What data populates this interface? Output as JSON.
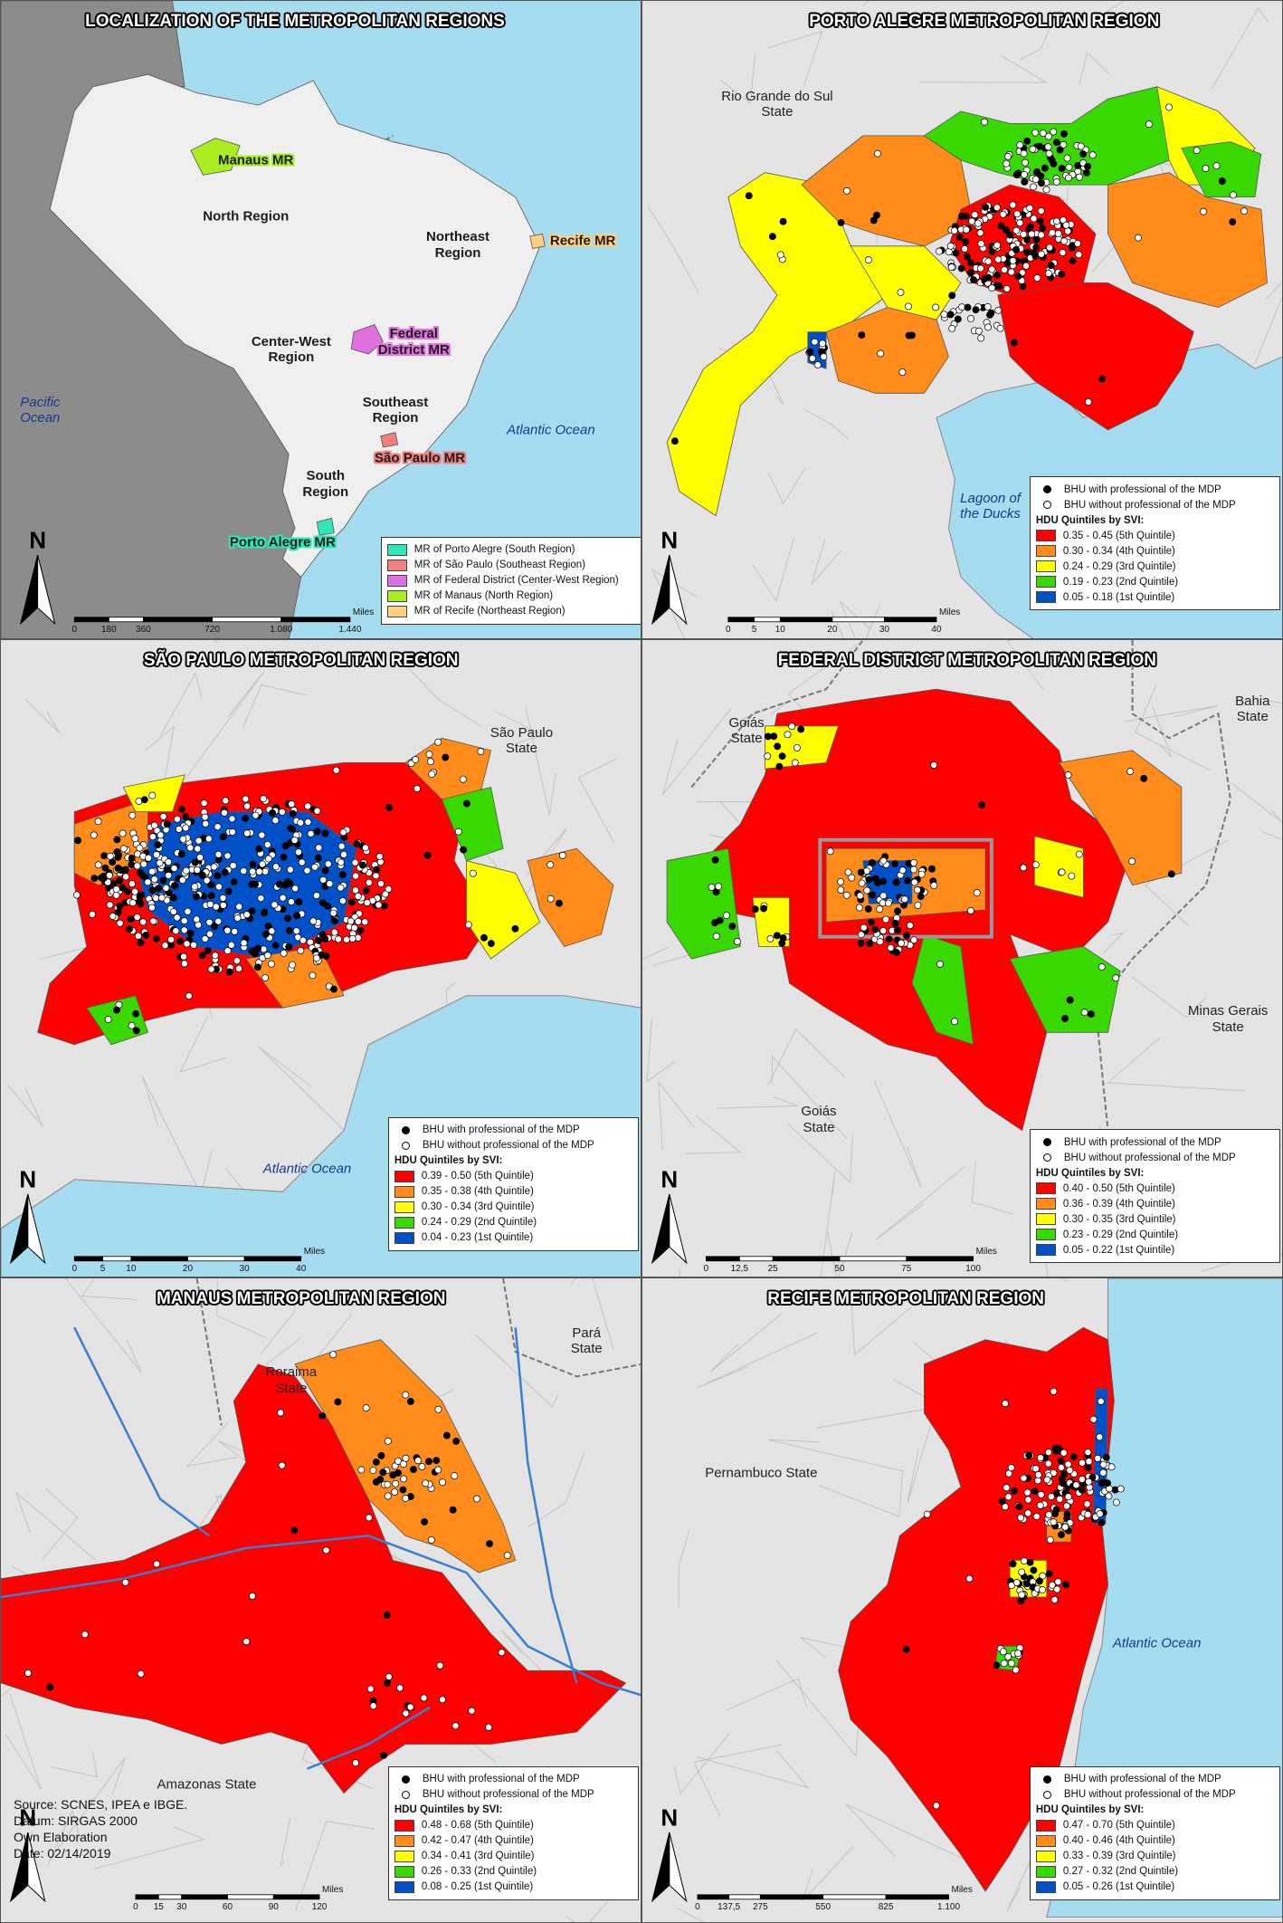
{
  "panels": [
    {
      "title": "LOCALIZATION OF THE METROPOLITAN REGIONS",
      "labels": [
        "Manaus MR",
        "North Region",
        "Northeast Region",
        "Recife MR",
        "Center-West Region",
        "Federal District MR",
        "Southeast Region",
        "São Paulo MR",
        "South Region",
        "Porto Alegre MR",
        "Pacific Ocean",
        "Atlantic Ocean"
      ],
      "legend": {
        "entries": [
          {
            "label": "MR of Porto Alegre (South Region)",
            "color": "#2ee8b8"
          },
          {
            "label": "MR of São Paulo (Southeast Region)",
            "color": "#f08080"
          },
          {
            "label": "MR of Federal District (Center-West Region)",
            "color": "#e070e0"
          },
          {
            "label": "MR of Manaus (North Region)",
            "color": "#aaee22"
          },
          {
            "label": "MR of Recife (Northeast Region)",
            "color": "#ffd080"
          }
        ]
      },
      "scale": {
        "ticks": [
          "0",
          "180",
          "360",
          "720",
          "1.080",
          "1.440"
        ],
        "unit": "Miles"
      },
      "north": "N"
    },
    {
      "title": "PORTO ALEGRE METROPOLITAN REGION",
      "labels": [
        "Rio Grande do Sul State",
        "Lagoon of the Ducks"
      ],
      "legend": {
        "symbols": [
          {
            "label": "BHU with professional of the MDP",
            "color": "#000000"
          },
          {
            "label": "BHU without professional of the MDP",
            "color": "#ffffff"
          }
        ],
        "heading": "HDU Quintiles by SVI:",
        "entries": [
          {
            "label": "0.35 - 0.45 (5th Quintile)",
            "color": "#ff0000"
          },
          {
            "label": "0.30 - 0.34 (4th Quintile)",
            "color": "#ff8c1a"
          },
          {
            "label": "0.24 - 0.29 (3rd Quintile)",
            "color": "#ffff00"
          },
          {
            "label": "0.19 - 0.23 (2nd Quintile)",
            "color": "#38d800"
          },
          {
            "label": "0.05 - 0.18 (1st Quintile)",
            "color": "#0050c8"
          }
        ]
      },
      "scale": {
        "ticks": [
          "0",
          "5",
          "10",
          "20",
          "30",
          "40"
        ],
        "unit": "Miles"
      },
      "north": "N"
    },
    {
      "title": "SÃO PAULO METROPOLITAN REGION",
      "labels": [
        "São Paulo State",
        "Atlantic Ocean"
      ],
      "legend": {
        "symbols": [
          {
            "label": "BHU with professional of the MDP",
            "color": "#000000"
          },
          {
            "label": "BHU without professional of the MDP",
            "color": "#ffffff"
          }
        ],
        "heading": "HDU Quintiles by SVI:",
        "entries": [
          {
            "label": "0.39 - 0.50 (5th Quintile)",
            "color": "#ff0000"
          },
          {
            "label": "0.35 - 0.38 (4th Quintile)",
            "color": "#ff8c1a"
          },
          {
            "label": "0.30 - 0.34 (3rd Quintile)",
            "color": "#ffff00"
          },
          {
            "label": "0.24 - 0.29 (2nd Quintile)",
            "color": "#38d800"
          },
          {
            "label": "0.04 - 0.23 (1st Quintile)",
            "color": "#0050c8"
          }
        ]
      },
      "scale": {
        "ticks": [
          "0",
          "5",
          "10",
          "20",
          "30",
          "40"
        ],
        "unit": "Miles"
      },
      "north": "N"
    },
    {
      "title": "FEDERAL DISTRICT METROPOLITAN REGION",
      "labels": [
        "Goiás State",
        "Bahia State",
        "Minas Gerais State",
        "Goiás State"
      ],
      "legend": {
        "symbols": [
          {
            "label": "BHU with professional of the MDP",
            "color": "#000000"
          },
          {
            "label": "BHU without professional of the MDP",
            "color": "#ffffff"
          }
        ],
        "heading": "HDU Quintiles by SVI:",
        "entries": [
          {
            "label": "0.40 - 0.50 (5th Quintile)",
            "color": "#ff0000"
          },
          {
            "label": "0.36 - 0.39 (4th Quintile)",
            "color": "#ff8c1a"
          },
          {
            "label": "0.30 - 0.35 (3rd Quintile)",
            "color": "#ffff00"
          },
          {
            "label": "0.23 - 0.29 (2nd Quintile)",
            "color": "#38d800"
          },
          {
            "label": "0.05 - 0.22 (1st Quintile)",
            "color": "#0050c8"
          }
        ]
      },
      "scale": {
        "ticks": [
          "0",
          "12,5",
          "25",
          "50",
          "75",
          "100"
        ],
        "unit": "Miles"
      },
      "north": "N"
    },
    {
      "title": "MANAUS METROPOLITAN REGION",
      "labels": [
        "Roraima State",
        "Pará State",
        "Amazonas State"
      ],
      "legend": {
        "symbols": [
          {
            "label": "BHU with professional of the MDP",
            "color": "#000000"
          },
          {
            "label": "BHU without professional of the MDP",
            "color": "#ffffff"
          }
        ],
        "heading": "HDU Quintiles by SVI:",
        "entries": [
          {
            "label": "0.48 - 0.68 (5th Quintile)",
            "color": "#ff0000"
          },
          {
            "label": "0.42 - 0.47 (4th Quintile)",
            "color": "#ff8c1a"
          },
          {
            "label": "0.34 - 0.41 (3rd Quintile)",
            "color": "#ffff00"
          },
          {
            "label": "0.26 - 0.33 (2nd Quintile)",
            "color": "#38d800"
          },
          {
            "label": "0.08 - 0.25 (1st Quintile)",
            "color": "#0050c8"
          }
        ]
      },
      "scale": {
        "ticks": [
          "0",
          "15",
          "30",
          "60",
          "90",
          "120"
        ],
        "unit": "Miles"
      },
      "north": "N",
      "notes": [
        "Source: SCNES, IPEA e IBGE.",
        "Datum: SIRGAS 2000",
        "Own Elaboration",
        "Date: 02/14/2019"
      ]
    },
    {
      "title": "RECIFE METROPOLITAN REGION",
      "labels": [
        "Pernambuco State",
        "Atlantic Ocean"
      ],
      "legend": {
        "symbols": [
          {
            "label": "BHU with professional of the MDP",
            "color": "#000000"
          },
          {
            "label": "BHU without professional of the MDP",
            "color": "#ffffff"
          }
        ],
        "heading": "HDU Quintiles by SVI:",
        "entries": [
          {
            "label": "0.47 - 0.70 (5th Quintile)",
            "color": "#ff0000"
          },
          {
            "label": "0.40 - 0.46 (4th Quintile)",
            "color": "#ff8c1a"
          },
          {
            "label": "0.33 - 0.39 (3rd Quintile)",
            "color": "#ffff00"
          },
          {
            "label": "0.27 - 0.32 (2nd Quintile)",
            "color": "#38d800"
          },
          {
            "label": "0.05 - 0.26 (1st Quintile)",
            "color": "#0050c8"
          }
        ]
      },
      "scale": {
        "ticks": [
          "0",
          "137,5",
          "275",
          "550",
          "825",
          "1.100"
        ],
        "unit": "Miles"
      },
      "north": "N"
    }
  ]
}
